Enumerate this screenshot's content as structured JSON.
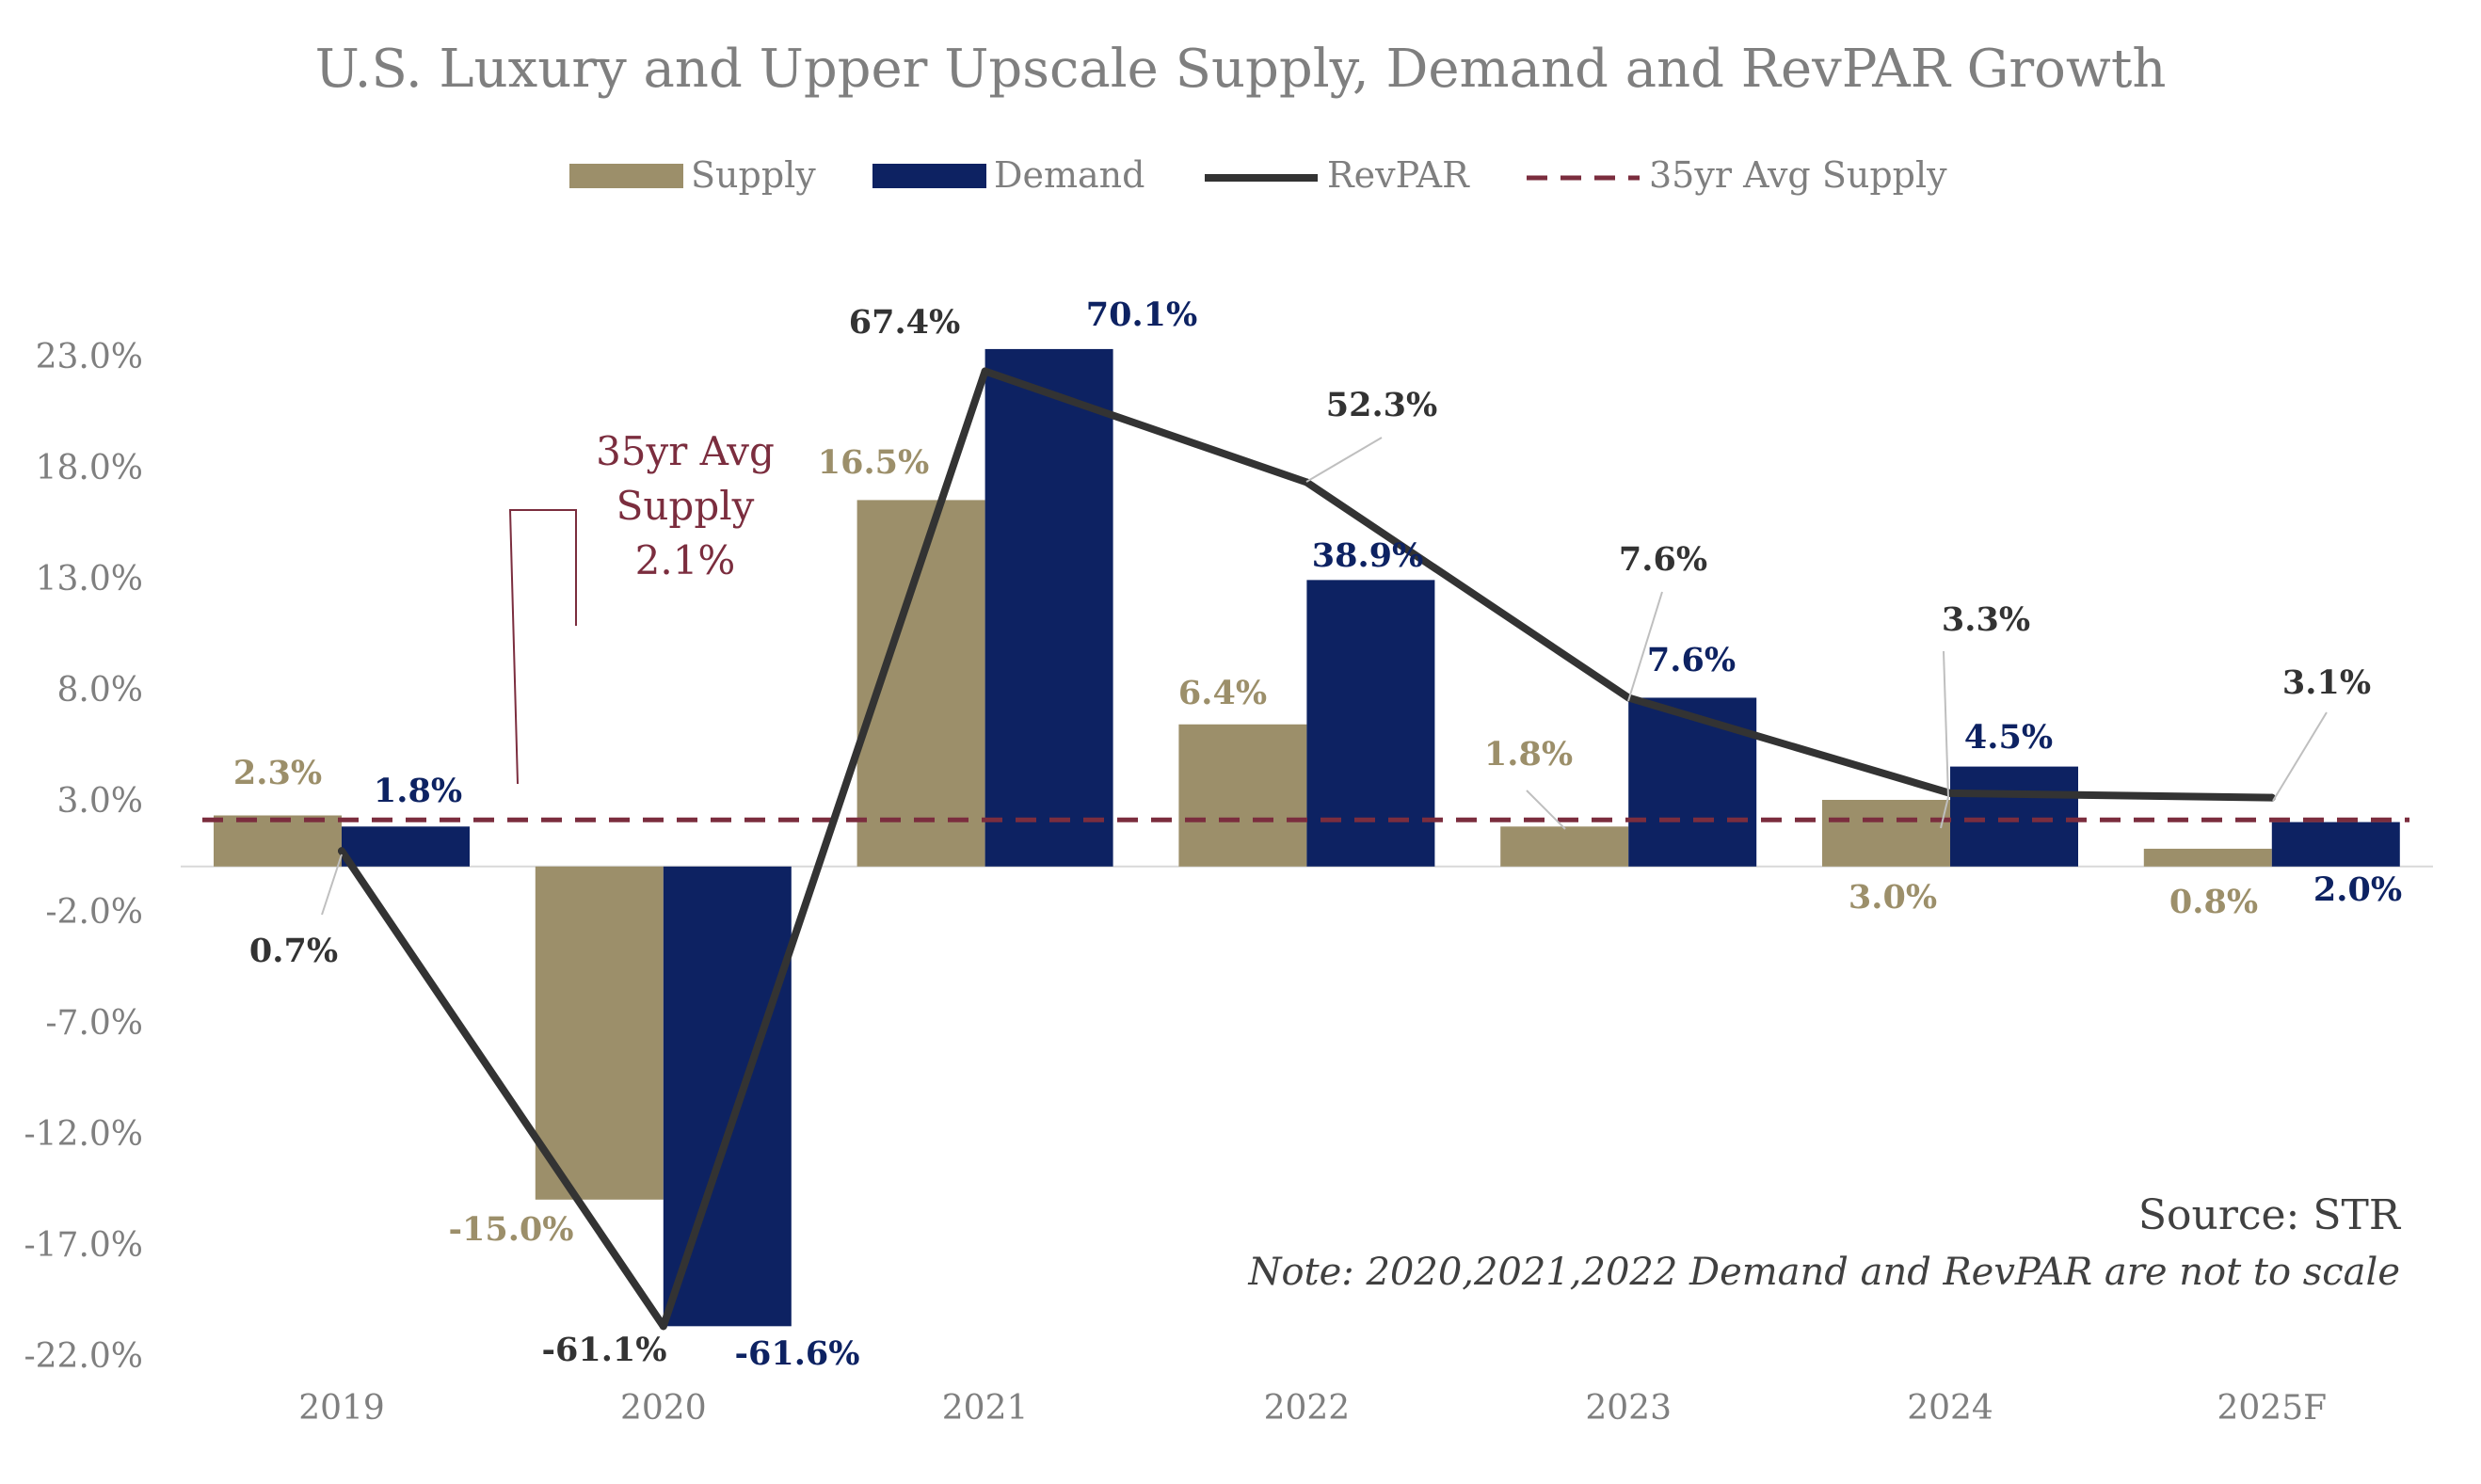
{
  "chart_data": {
    "type": "bar",
    "title": "U.S. Luxury and Upper Upscale Supply, Demand and RevPAR Growth",
    "categories": [
      "2019",
      "2020",
      "2021",
      "2022",
      "2023",
      "2024",
      "2025F"
    ],
    "y_ticks": [
      "23.0%",
      "18.0%",
      "13.0%",
      "8.0%",
      "3.0%",
      "-2.0%",
      "-7.0%",
      "-12.0%",
      "-17.0%",
      "-22.0%"
    ],
    "ylim": [
      -22,
      23
    ],
    "series": [
      {
        "name": "Supply",
        "kind": "bar",
        "color": "#9c8f6a",
        "plot_values": [
          2.3,
          -15.0,
          16.5,
          6.4,
          1.8,
          3.0,
          0.8
        ],
        "labels": [
          "2.3%",
          "-15.0%",
          "16.5%",
          "6.4%",
          "1.8%",
          "3.0%",
          "0.8%"
        ]
      },
      {
        "name": "Demand",
        "kind": "bar",
        "color": "#0d2262",
        "plot_values": [
          1.8,
          -20.7,
          23.3,
          12.9,
          7.6,
          4.5,
          2.0
        ],
        "labels": [
          "1.8%",
          "-61.6%",
          "70.1%",
          "38.9%",
          "7.6%",
          "4.5%",
          "2.0%"
        ]
      },
      {
        "name": "RevPAR",
        "kind": "line",
        "color": "#333333",
        "plot_values": [
          0.7,
          -20.7,
          22.3,
          17.3,
          7.6,
          3.3,
          3.1
        ],
        "labels": [
          "0.7%",
          "-61.1%",
          "67.4%",
          "52.3%",
          "7.6%",
          "3.3%",
          "3.1%"
        ]
      },
      {
        "name": "35yr Avg Supply",
        "kind": "dashed-line",
        "color": "#7b2d3e",
        "value": 2.1
      }
    ],
    "annotation": {
      "lines": [
        "35yr Avg",
        "Supply",
        "2.1%"
      ]
    },
    "source": "Source: STR",
    "note": "Note: 2020,2021,2022 Demand and RevPAR are not to scale"
  }
}
